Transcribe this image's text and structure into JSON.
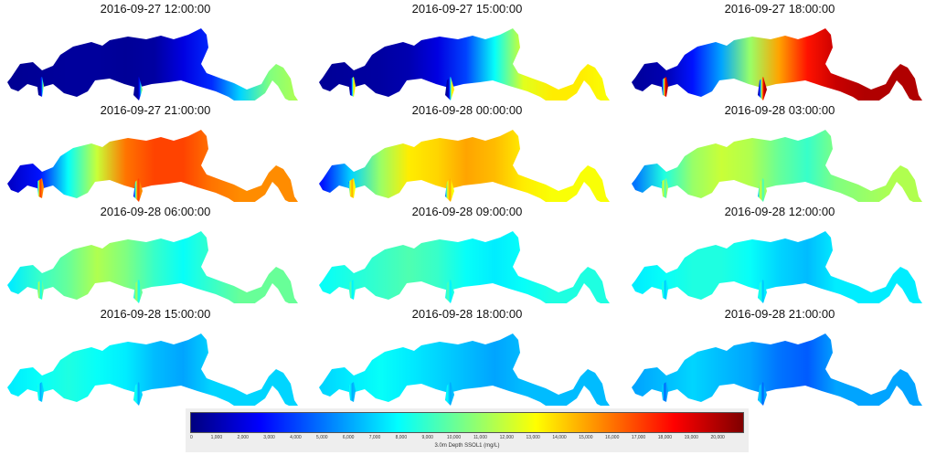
{
  "panels": [
    {
      "title": "2016-09-27 12:00:00",
      "profile": [
        0.4,
        0.5,
        0.6,
        0.6,
        0.5,
        0.7,
        2.0,
        3.5,
        7.0,
        10.5,
        11.5
      ]
    },
    {
      "title": "2016-09-27 15:00:00",
      "profile": [
        0.5,
        0.6,
        0.7,
        1.0,
        2.0,
        4.0,
        8.0,
        12.5,
        13.5,
        13.5,
        13.0
      ]
    },
    {
      "title": "2016-09-27 18:00:00",
      "profile": [
        0.6,
        1.0,
        3.0,
        6.0,
        11.0,
        15.0,
        18.0,
        19.5,
        20.0,
        20.0,
        20.0
      ]
    },
    {
      "title": "2016-09-27 21:00:00",
      "profile": [
        1.5,
        3.0,
        8.0,
        12.0,
        16.0,
        17.0,
        17.0,
        16.0,
        15.5,
        15.5,
        15.5
      ]
    },
    {
      "title": "2016-09-28 00:00:00",
      "profile": [
        3.0,
        7.0,
        11.0,
        13.5,
        14.0,
        15.0,
        14.5,
        13.5,
        13.0,
        13.0,
        13.0
      ]
    },
    {
      "title": "2016-09-28 03:00:00",
      "profile": [
        5.0,
        8.5,
        11.0,
        12.0,
        11.5,
        10.0,
        9.0,
        10.5,
        11.0,
        11.5,
        11.5
      ]
    },
    {
      "title": "2016-09-28 06:00:00",
      "profile": [
        7.5,
        9.0,
        10.0,
        11.5,
        10.5,
        9.0,
        8.0,
        9.0,
        10.0,
        10.0,
        10.0
      ]
    },
    {
      "title": "2016-09-28 09:00:00",
      "profile": [
        8.0,
        8.5,
        9.0,
        9.5,
        9.0,
        8.0,
        7.5,
        8.0,
        8.5,
        8.5,
        8.5
      ]
    },
    {
      "title": "2016-09-28 12:00:00",
      "profile": [
        7.5,
        8.0,
        8.5,
        8.5,
        8.0,
        7.0,
        6.5,
        7.5,
        7.5,
        7.5,
        7.5
      ]
    },
    {
      "title": "2016-09-28 15:00:00",
      "profile": [
        7.5,
        8.0,
        8.5,
        8.0,
        7.5,
        6.5,
        6.0,
        7.0,
        7.0,
        7.0,
        7.0
      ]
    },
    {
      "title": "2016-09-28 18:00:00",
      "profile": [
        7.0,
        7.5,
        8.0,
        7.5,
        7.0,
        6.5,
        6.0,
        6.5,
        6.5,
        6.5,
        6.5
      ]
    },
    {
      "title": "2016-09-28 21:00:00",
      "profile": [
        6.0,
        6.5,
        7.0,
        6.5,
        6.0,
        5.0,
        4.5,
        6.0,
        6.0,
        6.0,
        6.0
      ]
    }
  ],
  "legend": {
    "label": "3.0m Depth SSOL1 (mg/L)",
    "min": 0,
    "max": 21000,
    "ticks": [
      "0",
      "1,000",
      "2,000",
      "3,000",
      "4,000",
      "5,000",
      "6,000",
      "7,000",
      "8,000",
      "9,000",
      "10,000",
      "11,000",
      "12,000",
      "13,000",
      "14,000",
      "15,000",
      "16,000",
      "17,000",
      "18,000",
      "19,000",
      "20,000"
    ],
    "colors": [
      "#00007f",
      "#0000ff",
      "#0080ff",
      "#00ffff",
      "#80ff80",
      "#ffff00",
      "#ff8000",
      "#ff0000",
      "#7f0000"
    ]
  }
}
